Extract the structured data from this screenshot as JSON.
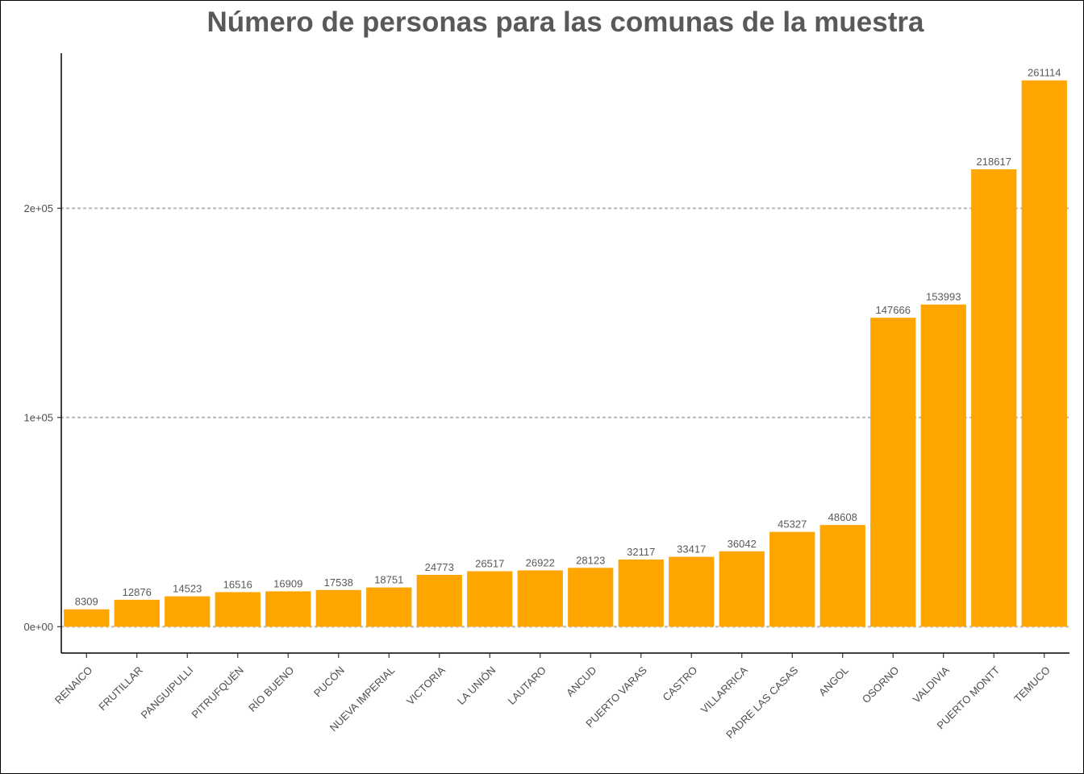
{
  "chart_data": {
    "type": "bar",
    "title": "Número de personas para las comunas de la muestra",
    "xlabel": "",
    "ylabel": "",
    "categories": [
      "RENAICO",
      "FRUTILLAR",
      "PANGUIPULLI",
      "PITRUFQUÉN",
      "RÍO BUENO",
      "PUCÓN",
      "NUEVA IMPERIAL",
      "VICTORIA",
      "LA UNIÓN",
      "LAUTARO",
      "ANCUD",
      "PUERTO VARAS",
      "CASTRO",
      "VILLARRICA",
      "PADRE LAS CASAS",
      "ANGOL",
      "OSORNO",
      "VALDIVIA",
      "PUERTO MONTT",
      "TEMUCO"
    ],
    "values": [
      8309,
      12876,
      14523,
      16516,
      16909,
      17538,
      18751,
      24773,
      26517,
      26922,
      28123,
      32117,
      33417,
      36042,
      45327,
      48608,
      147666,
      153993,
      218617,
      261114
    ],
    "data_labels": [
      "8309",
      "12876",
      "14523",
      "16516",
      "16909",
      "17538",
      "18751",
      "24773",
      "26517",
      "26922",
      "28123",
      "32117",
      "33417",
      "36042",
      "45327",
      "48608",
      "147666",
      "153993",
      "218617",
      "261114"
    ],
    "y_ticks": [
      0,
      100000,
      200000
    ],
    "y_tick_labels": [
      "0e+00",
      "1e+05",
      "2e+05"
    ],
    "ylim": [
      -12600,
      274100
    ],
    "grid": "horizontal dotted major lines",
    "legend": "none",
    "colors": {
      "bar": "#FFA500",
      "grid": "#BEBEBE",
      "text": "#595959",
      "axis": "#000000"
    }
  }
}
